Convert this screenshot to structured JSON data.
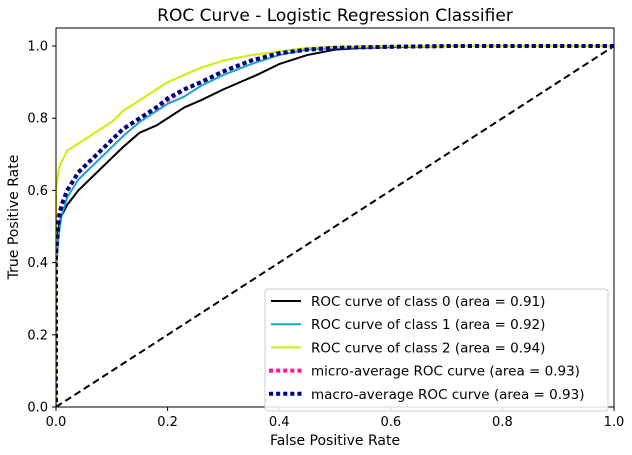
{
  "chart_data": {
    "type": "line",
    "title": "ROC Curve - Logistic Regression Classifier",
    "xlabel": "False Positive Rate",
    "ylabel": "True Positive Rate",
    "xlim": [
      0.0,
      1.0
    ],
    "ylim": [
      0.0,
      1.05
    ],
    "xticks": [
      "0.0",
      "0.2",
      "0.4",
      "0.6",
      "0.8",
      "1.0"
    ],
    "yticks": [
      "0.0",
      "0.2",
      "0.4",
      "0.6",
      "0.8",
      "1.0"
    ],
    "grid": false,
    "legend_position": "lower-right",
    "series": [
      {
        "name": "ROC curve of class 0 (area = 0.91)",
        "color": "#000000",
        "style": "solid",
        "x": [
          0.0,
          0.0,
          0.005,
          0.01,
          0.02,
          0.04,
          0.06,
          0.08,
          0.1,
          0.12,
          0.15,
          0.18,
          0.2,
          0.23,
          0.26,
          0.3,
          0.33,
          0.36,
          0.4,
          0.45,
          0.5,
          0.55,
          0.6,
          0.7,
          0.8,
          0.9,
          1.0
        ],
        "y": [
          0.0,
          0.46,
          0.5,
          0.53,
          0.56,
          0.6,
          0.63,
          0.66,
          0.69,
          0.72,
          0.76,
          0.78,
          0.8,
          0.83,
          0.85,
          0.88,
          0.9,
          0.92,
          0.95,
          0.975,
          0.99,
          0.995,
          0.997,
          1.0,
          1.0,
          1.0,
          1.0
        ]
      },
      {
        "name": "ROC curve of class 1 (area = 0.92)",
        "color": "#17a7c8",
        "style": "solid",
        "x": [
          0.0,
          0.0,
          0.005,
          0.01,
          0.02,
          0.04,
          0.06,
          0.08,
          0.1,
          0.12,
          0.15,
          0.18,
          0.2,
          0.23,
          0.26,
          0.3,
          0.35,
          0.4,
          0.45,
          0.5,
          0.6,
          0.7,
          0.8,
          0.9,
          1.0
        ],
        "y": [
          0.0,
          0.38,
          0.48,
          0.53,
          0.58,
          0.63,
          0.66,
          0.69,
          0.72,
          0.75,
          0.79,
          0.82,
          0.84,
          0.86,
          0.89,
          0.92,
          0.95,
          0.975,
          0.99,
          0.995,
          0.998,
          1.0,
          1.0,
          1.0,
          1.0
        ]
      },
      {
        "name": "ROC curve of class 2 (area = 0.94)",
        "color": "#ccf000",
        "style": "solid",
        "x": [
          0.0,
          0.0,
          0.005,
          0.01,
          0.02,
          0.04,
          0.06,
          0.08,
          0.1,
          0.12,
          0.15,
          0.18,
          0.2,
          0.23,
          0.26,
          0.3,
          0.35,
          0.4,
          0.45,
          0.5,
          0.6,
          0.7,
          0.8,
          0.9,
          1.0
        ],
        "y": [
          0.0,
          0.6,
          0.66,
          0.68,
          0.71,
          0.73,
          0.75,
          0.77,
          0.79,
          0.82,
          0.85,
          0.88,
          0.9,
          0.92,
          0.94,
          0.96,
          0.975,
          0.985,
          0.995,
          0.998,
          1.0,
          1.0,
          1.0,
          1.0,
          1.0
        ]
      },
      {
        "name": "micro-average ROC curve (area = 0.93)",
        "color": "#ff1493",
        "style": "dotted",
        "x": [
          0.0,
          0.0,
          0.005,
          0.01,
          0.02,
          0.04,
          0.06,
          0.08,
          0.1,
          0.12,
          0.15,
          0.18,
          0.2,
          0.23,
          0.26,
          0.3,
          0.35,
          0.4,
          0.45,
          0.5,
          0.6,
          0.7,
          0.8,
          0.9,
          1.0
        ],
        "y": [
          0.0,
          0.45,
          0.53,
          0.56,
          0.6,
          0.65,
          0.68,
          0.71,
          0.74,
          0.77,
          0.8,
          0.83,
          0.85,
          0.88,
          0.9,
          0.93,
          0.96,
          0.98,
          0.99,
          0.995,
          0.998,
          1.0,
          1.0,
          1.0,
          1.0
        ]
      },
      {
        "name": "macro-average ROC curve (area = 0.93)",
        "color": "#00007f",
        "style": "dotted",
        "x": [
          0.0,
          0.0,
          0.005,
          0.01,
          0.02,
          0.04,
          0.06,
          0.08,
          0.1,
          0.12,
          0.15,
          0.18,
          0.2,
          0.23,
          0.26,
          0.3,
          0.35,
          0.4,
          0.45,
          0.5,
          0.6,
          0.7,
          0.8,
          0.9,
          1.0
        ],
        "y": [
          0.0,
          0.42,
          0.52,
          0.56,
          0.6,
          0.65,
          0.68,
          0.71,
          0.74,
          0.77,
          0.8,
          0.83,
          0.855,
          0.88,
          0.9,
          0.93,
          0.96,
          0.98,
          0.99,
          0.995,
          0.998,
          1.0,
          1.0,
          1.0,
          1.0
        ]
      },
      {
        "color": "#000000",
        "style": "dashed",
        "x": [
          0.0,
          1.0
        ],
        "y": [
          0.0,
          1.0
        ]
      }
    ]
  }
}
